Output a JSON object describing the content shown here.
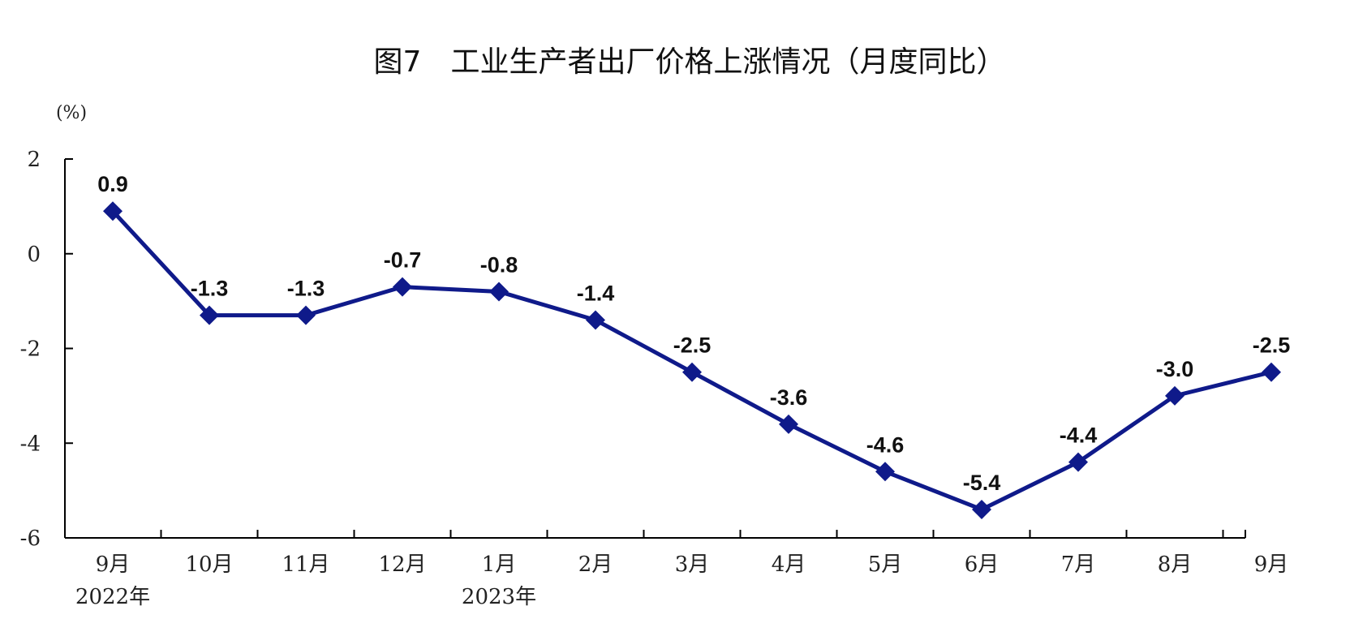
{
  "chart_data": {
    "type": "line",
    "title": "图7　工业生产者出厂价格上涨情况（月度同比）",
    "ylabel": "(%)",
    "xlabel": "",
    "ylim": [
      -6,
      2
    ],
    "yticks": [
      2,
      0,
      -2,
      -4,
      -6
    ],
    "grid": false,
    "legend": "none",
    "categories": [
      "9月",
      "10月",
      "11月",
      "12月",
      "1月",
      "2月",
      "3月",
      "4月",
      "5月",
      "6月",
      "7月",
      "8月",
      "9月"
    ],
    "year_labels": [
      {
        "index": 0,
        "text": "2022年"
      },
      {
        "index": 4,
        "text": "2023年"
      }
    ],
    "series": [
      {
        "color": "#0f1a8a",
        "marker": "diamond",
        "values": [
          0.9,
          -1.3,
          -1.3,
          -0.7,
          -0.8,
          -1.4,
          -2.5,
          -3.6,
          -4.6,
          -5.4,
          -4.4,
          -3.0,
          -2.5
        ],
        "labels": [
          "0.9",
          "-1.3",
          "-1.3",
          "-0.7",
          "-0.8",
          "-1.4",
          "-2.5",
          "-3.6",
          "-4.6",
          "-5.4",
          "-4.4",
          "-3.0",
          "-2.5"
        ]
      }
    ]
  }
}
